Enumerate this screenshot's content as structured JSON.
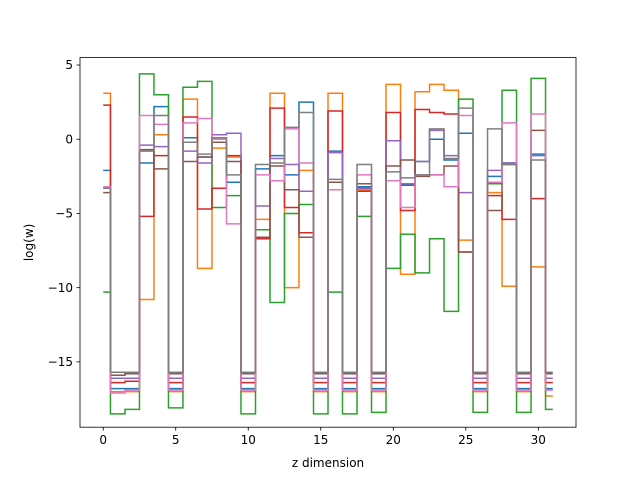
{
  "chart_data": {
    "type": "line",
    "step": "mid",
    "xlabel": "z dimension",
    "ylabel": "log(w)",
    "xlim": [
      -1.6,
      32.6
    ],
    "ylim": [
      -19.4,
      5.5
    ],
    "xticks": [
      0,
      5,
      10,
      15,
      20,
      25,
      30
    ],
    "yticks": [
      5,
      0,
      -5,
      -10,
      -15
    ],
    "ytick_labels": [
      "5",
      "0",
      "−5",
      "−10",
      "−15"
    ],
    "grid": false,
    "x": [
      0,
      1,
      2,
      3,
      4,
      5,
      6,
      7,
      8,
      9,
      10,
      11,
      12,
      13,
      14,
      15,
      16,
      17,
      18,
      19,
      20,
      21,
      22,
      23,
      24,
      25,
      26,
      27,
      28,
      29,
      30,
      31
    ],
    "series": [
      {
        "color": "#1f77b4",
        "values": [
          -2.1,
          -16.8,
          -16.8,
          -1.6,
          2.2,
          -16.8,
          0.1,
          -1.2,
          -0.2,
          -2.9,
          -16.8,
          -2.0,
          -1.1,
          -2.4,
          2.5,
          -16.8,
          -0.8,
          -16.8,
          -3.2,
          -16.8,
          -0.1,
          -3.1,
          -1.5,
          0.0,
          -1.4,
          0.4,
          -16.8,
          -2.5,
          -1.6,
          -16.8,
          -1.0,
          -16.8
        ]
      },
      {
        "color": "#ff7f0e",
        "values": [
          3.1,
          -17.0,
          -17.0,
          -10.8,
          0.3,
          -17.0,
          2.7,
          -8.7,
          -0.6,
          -1.2,
          -17.0,
          -5.4,
          3.1,
          -10.0,
          -2.1,
          -17.0,
          3.1,
          -17.0,
          -3.4,
          -17.0,
          3.7,
          -9.1,
          3.2,
          3.7,
          3.3,
          -6.8,
          -17.0,
          -3.6,
          -9.9,
          -17.0,
          -8.6,
          -17.3
        ]
      },
      {
        "color": "#2ca02c",
        "values": [
          -10.3,
          -18.5,
          -18.2,
          4.4,
          3.0,
          -18.1,
          3.5,
          3.9,
          -4.6,
          -3.8,
          -18.5,
          -6.1,
          -11.0,
          -5.0,
          -4.4,
          -18.5,
          -10.3,
          -18.5,
          -5.2,
          -18.4,
          -8.7,
          -6.4,
          -9.0,
          -6.7,
          -11.6,
          2.7,
          -18.4,
          -3.0,
          3.3,
          -18.4,
          4.1,
          -18.2
        ]
      },
      {
        "color": "#d62728",
        "values": [
          2.3,
          -16.4,
          -16.3,
          -5.2,
          -1.1,
          -16.4,
          1.5,
          -4.7,
          -3.3,
          -1.1,
          -16.4,
          -6.7,
          2.1,
          -4.6,
          -6.3,
          -16.4,
          1.9,
          -16.4,
          -3.5,
          -16.4,
          1.8,
          -4.8,
          2.0,
          1.8,
          1.7,
          -7.6,
          -16.4,
          -3.8,
          -5.4,
          -16.4,
          -4.0,
          -16.4
        ]
      },
      {
        "color": "#9467bd",
        "values": [
          -3.3,
          -16.1,
          -16.1,
          -0.4,
          -0.5,
          -16.1,
          -0.8,
          -1.6,
          0.3,
          0.4,
          -16.1,
          -4.5,
          -1.3,
          -1.7,
          -3.5,
          -16.1,
          -0.9,
          -16.1,
          -3.3,
          -16.1,
          -0.1,
          -3.0,
          -1.5,
          0.6,
          -1.1,
          -3.6,
          -16.1,
          -2.1,
          -1.6,
          -16.1,
          -1.1,
          -16.1
        ]
      },
      {
        "color": "#8c564b",
        "values": [
          -3.6,
          -15.9,
          -15.8,
          -0.7,
          -2.0,
          -15.8,
          -1.5,
          -1.2,
          -0.2,
          -1.5,
          -15.8,
          -6.6,
          -1.8,
          -3.4,
          -6.6,
          -15.8,
          -2.9,
          -15.8,
          -3.0,
          -15.8,
          -1.8,
          -1.4,
          -2.5,
          -2.4,
          -1.8,
          -7.6,
          -15.8,
          -4.8,
          -1.7,
          -15.8,
          0.6,
          -15.8
        ]
      },
      {
        "color": "#e377c2",
        "values": [
          -3.2,
          -17.1,
          -16.9,
          1.6,
          1.0,
          -16.9,
          1.1,
          1.4,
          0.0,
          -5.7,
          -16.9,
          -2.4,
          -2.8,
          0.7,
          -1.6,
          -16.9,
          -3.4,
          -16.9,
          -2.4,
          -16.9,
          -2.8,
          -4.6,
          -2.4,
          -2.4,
          -3.2,
          1.6,
          -16.9,
          -2.9,
          1.1,
          -16.9,
          1.7,
          -16.9
        ]
      },
      {
        "color": "#7f7f7f",
        "values": [
          -3.3,
          -15.7,
          -15.7,
          -0.8,
          1.6,
          -15.7,
          -0.2,
          -1.0,
          0.1,
          -2.4,
          -15.7,
          -1.7,
          -1.6,
          0.8,
          1.8,
          -15.7,
          -2.7,
          -15.7,
          -1.7,
          -15.7,
          -2.2,
          -2.6,
          -2.4,
          0.7,
          -1.3,
          2.1,
          -15.7,
          0.7,
          -1.7,
          -15.7,
          -1.4,
          -15.7
        ]
      }
    ]
  }
}
